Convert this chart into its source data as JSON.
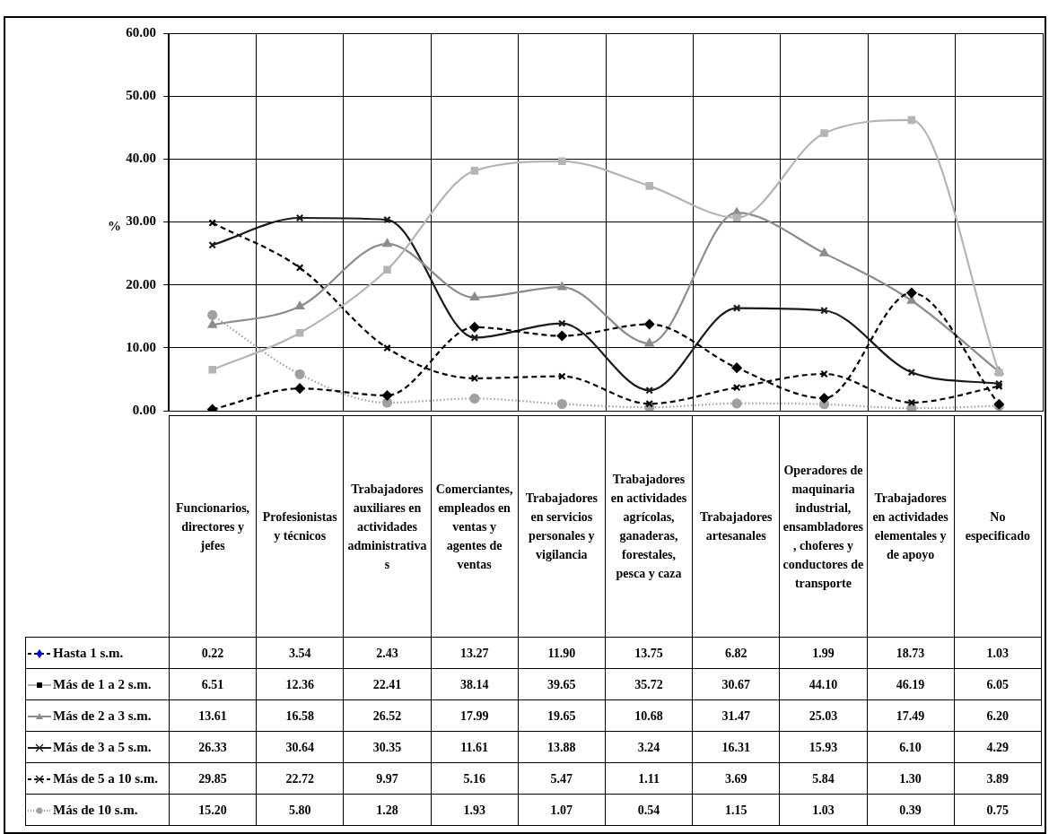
{
  "chart_data": {
    "type": "line",
    "ylabel": "%",
    "categories": [
      "Funcionarios, directores y jefes",
      "Profesionistas y técnicos",
      "Trabajadores auxiliares en actividades administrativas",
      "Comerciantes, empleados en ventas y agentes de ventas",
      "Trabajadores en servicios personales y vigilancia",
      "Trabajadores en actividades agrícolas, ganaderas, forestales, pesca y caza",
      "Trabajadores artesanales",
      "Operadores de maquinaria industrial, ensambladores, choferes y conductores de transporte",
      "Trabajadores en actividades elementales y de apoyo",
      "No especificado"
    ],
    "series": [
      {
        "name": "Hasta 1 s.m.",
        "color": "#000000",
        "marker": "diamond",
        "line_style": "dashed",
        "values": [
          0.22,
          3.54,
          2.43,
          13.27,
          11.9,
          13.75,
          6.82,
          1.99,
          18.73,
          1.03
        ],
        "value_labels": [
          "0.22",
          "3.54",
          "2.43",
          "13.27",
          "11.90",
          "13.75",
          "6.82",
          "1.99",
          "18.73",
          "1.03"
        ]
      },
      {
        "name": "Más de 1 a 2 s.m.",
        "color": "#b4b4b4",
        "marker": "square",
        "line_style": "solid",
        "values": [
          6.51,
          12.36,
          22.41,
          38.14,
          39.65,
          35.72,
          30.67,
          44.1,
          46.19,
          6.05
        ],
        "value_labels": [
          "6.51",
          "12.36",
          "22.41",
          "38.14",
          "39.65",
          "35.72",
          "30.67",
          "44.10",
          "46.19",
          "6.05"
        ]
      },
      {
        "name": "Más de 2 a 3 s.m.",
        "color": "#8c8c8c",
        "marker": "triangle",
        "line_style": "solid",
        "values": [
          13.61,
          16.58,
          26.52,
          17.99,
          19.65,
          10.68,
          31.47,
          25.03,
          17.49,
          6.2
        ],
        "value_labels": [
          "13.61",
          "16.58",
          "26.52",
          "17.99",
          "19.65",
          "10.68",
          "31.47",
          "25.03",
          "17.49",
          "6.20"
        ]
      },
      {
        "name": "Más de 3 a 5 s.m.",
        "color": "#1a1a1a",
        "marker": "cross",
        "line_style": "solid",
        "values": [
          26.33,
          30.64,
          30.35,
          11.61,
          13.88,
          3.24,
          16.31,
          15.93,
          6.1,
          4.29
        ],
        "value_labels": [
          "26.33",
          "30.64",
          "30.35",
          "11.61",
          "13.88",
          "3.24",
          "16.31",
          "15.93",
          "6.10",
          "4.29"
        ]
      },
      {
        "name": "Más de 5 a 10 s.m.",
        "color": "#000000",
        "marker": "cross",
        "line_style": "dashed",
        "values": [
          29.85,
          22.72,
          9.97,
          5.16,
          5.47,
          1.11,
          3.69,
          5.84,
          1.3,
          3.89
        ],
        "value_labels": [
          "29.85",
          "22.72",
          "9.97",
          "5.16",
          "5.47",
          "1.11",
          "3.69",
          "5.84",
          "1.30",
          "3.89"
        ]
      },
      {
        "name": "Más de 10 s.m.",
        "color": "#a0a0a0",
        "marker": "circle",
        "line_style": "dotted",
        "values": [
          15.2,
          5.8,
          1.28,
          1.93,
          1.07,
          0.54,
          1.15,
          1.03,
          0.39,
          0.75
        ],
        "value_labels": [
          "15.20",
          "5.80",
          "1.28",
          "1.93",
          "1.07",
          "0.54",
          "1.15",
          "1.03",
          "0.39",
          "0.75"
        ]
      }
    ],
    "ylim": [
      0,
      60
    ],
    "yticks": [
      {
        "value": 0,
        "label": "0.00"
      },
      {
        "value": 10,
        "label": "10.00"
      },
      {
        "value": 20,
        "label": "20.00"
      },
      {
        "value": 30,
        "label": "30.00"
      },
      {
        "value": 40,
        "label": "40.00"
      },
      {
        "value": 50,
        "label": "50.00"
      },
      {
        "value": 60,
        "label": "60.00"
      }
    ],
    "grid": true,
    "legend": "bottom"
  }
}
